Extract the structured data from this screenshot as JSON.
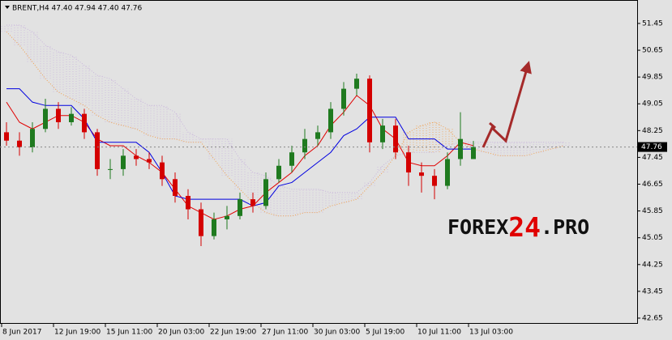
{
  "chart_data": {
    "type": "candlestick",
    "title": "BRENT,H4  47.40 47.94 47.40 47.76",
    "categories": [
      "8 Jun 2017",
      null,
      null,
      null,
      "12 Jun 19:00",
      null,
      null,
      null,
      "15 Jun 11:00",
      null,
      null,
      null,
      "20 Jun 03:00",
      null,
      null,
      null,
      "22 Jun 19:00",
      null,
      null,
      null,
      "27 Jun 11:00",
      null,
      null,
      null,
      "30 Jun 03:00",
      null,
      null,
      null,
      "5 Jul 19:00",
      null,
      null,
      null,
      "10 Jul 11:00",
      null,
      null,
      null,
      "13 Jul 03:00",
      null,
      null,
      null,
      null,
      null,
      null,
      null
    ],
    "open": [
      48.2,
      47.95,
      47.75,
      48.3,
      48.9,
      48.5,
      48.75,
      48.2,
      47.1,
      47.1,
      47.5,
      47.4,
      47.3,
      46.8,
      46.3,
      45.9,
      45.1,
      45.6,
      45.7,
      46.2,
      46.0,
      46.8,
      47.2,
      47.6,
      48.0,
      48.2,
      48.9,
      49.5,
      49.8,
      47.9,
      48.4,
      47.6,
      47.0,
      46.9,
      46.6,
      47.4,
      47.4,
      null,
      null,
      null,
      null,
      null,
      null,
      null
    ],
    "high": [
      48.5,
      48.2,
      48.5,
      49.2,
      49.1,
      48.95,
      48.9,
      48.3,
      47.4,
      47.7,
      47.7,
      47.6,
      47.5,
      47.0,
      46.5,
      46.1,
      45.8,
      46.0,
      46.4,
      46.4,
      47.0,
      47.4,
      47.8,
      48.3,
      48.4,
      49.1,
      49.7,
      49.95,
      49.9,
      48.6,
      48.6,
      47.8,
      47.3,
      47.1,
      47.6,
      48.8,
      47.94,
      null,
      null,
      null,
      null,
      null,
      null,
      null
    ],
    "low": [
      47.8,
      47.5,
      47.6,
      48.2,
      48.3,
      48.4,
      48.0,
      46.9,
      46.8,
      46.9,
      47.2,
      47.1,
      46.6,
      46.1,
      45.6,
      44.8,
      45.0,
      45.3,
      45.6,
      45.8,
      45.9,
      46.7,
      47.0,
      47.4,
      47.8,
      48.0,
      48.7,
      49.3,
      47.6,
      47.7,
      47.4,
      46.6,
      46.4,
      46.2,
      46.5,
      47.2,
      47.4,
      null,
      null,
      null,
      null,
      null,
      null,
      null
    ],
    "close": [
      47.95,
      47.75,
      48.3,
      48.9,
      48.5,
      48.75,
      48.2,
      47.1,
      47.1,
      47.5,
      47.4,
      47.3,
      46.8,
      46.3,
      45.9,
      45.1,
      45.6,
      45.7,
      46.2,
      46.0,
      46.8,
      47.2,
      47.6,
      48.0,
      48.2,
      48.9,
      49.5,
      49.8,
      47.9,
      48.4,
      47.6,
      47.0,
      46.9,
      46.6,
      47.4,
      48.0,
      47.76,
      null,
      null,
      null,
      null,
      null,
      null,
      null
    ],
    "up_color": "#1f7a1f",
    "down_color": "#d40000",
    "series": [
      {
        "color": "#e00000",
        "style": "solid",
        "values": [
          49.1,
          48.5,
          48.3,
          48.5,
          48.7,
          48.7,
          48.5,
          48.0,
          47.8,
          47.8,
          47.5,
          47.3,
          47.0,
          46.5,
          46.0,
          45.8,
          45.6,
          45.7,
          45.9,
          46.0,
          46.4,
          46.7,
          47.0,
          47.5,
          47.8,
          48.4,
          48.8,
          49.3,
          49.0,
          48.3,
          48.0,
          47.3,
          47.2,
          47.2,
          47.5,
          47.9,
          47.8,
          null,
          null,
          null,
          null,
          null,
          null,
          null
        ]
      },
      {
        "color": "#0000e0",
        "style": "solid",
        "values": [
          49.5,
          49.5,
          49.1,
          49.0,
          49.0,
          49.0,
          48.6,
          47.9,
          47.9,
          47.9,
          47.9,
          47.6,
          47.0,
          46.3,
          46.2,
          46.2,
          46.2,
          46.2,
          46.2,
          46.0,
          46.1,
          46.6,
          46.7,
          47.0,
          47.3,
          47.6,
          48.1,
          48.3,
          48.65,
          48.65,
          48.65,
          48.0,
          48.0,
          48.0,
          47.7,
          47.7,
          47.7,
          null,
          null,
          null,
          null,
          null,
          null,
          null
        ]
      },
      {
        "color": "#f0a050",
        "style": "dotted",
        "values": [
          51.2,
          50.8,
          50.3,
          49.8,
          49.4,
          49.2,
          49.0,
          48.7,
          48.5,
          48.4,
          48.3,
          48.1,
          48.0,
          48.0,
          47.9,
          47.9,
          47.4,
          46.9,
          46.5,
          46.1,
          45.8,
          45.7,
          45.7,
          45.8,
          45.8,
          46.0,
          46.1,
          46.2,
          46.6,
          47.0,
          47.5,
          48.2,
          48.4,
          48.5,
          48.3,
          47.9,
          47.7,
          47.6,
          47.5,
          47.5,
          47.5,
          47.6,
          47.7,
          47.8
        ]
      },
      {
        "color": "#c8b4dc",
        "style": "dotted",
        "values": [
          51.4,
          51.4,
          51.2,
          50.8,
          50.6,
          50.5,
          50.2,
          49.9,
          49.8,
          49.5,
          49.2,
          49.0,
          49.0,
          48.8,
          48.2,
          48.0,
          48.0,
          48.0,
          47.4,
          47.0,
          46.9,
          46.6,
          46.5,
          46.5,
          46.5,
          46.4,
          46.4,
          46.4,
          46.7,
          47.2,
          47.5,
          47.6,
          47.6,
          47.6,
          47.8,
          47.9,
          47.9,
          47.9,
          47.9,
          47.9,
          47.9,
          47.9,
          47.9,
          47.9
        ]
      }
    ],
    "cloud_series": [
      2,
      3
    ],
    "ylim": [
      42.48,
      52.15
    ],
    "yticks": [
      51.45,
      50.65,
      49.85,
      49.05,
      48.25,
      47.45,
      46.65,
      45.85,
      45.05,
      44.25,
      43.45,
      42.65
    ],
    "last_price": 47.76,
    "watermark": [
      "FOREX",
      "24",
      ".PRO"
    ]
  }
}
